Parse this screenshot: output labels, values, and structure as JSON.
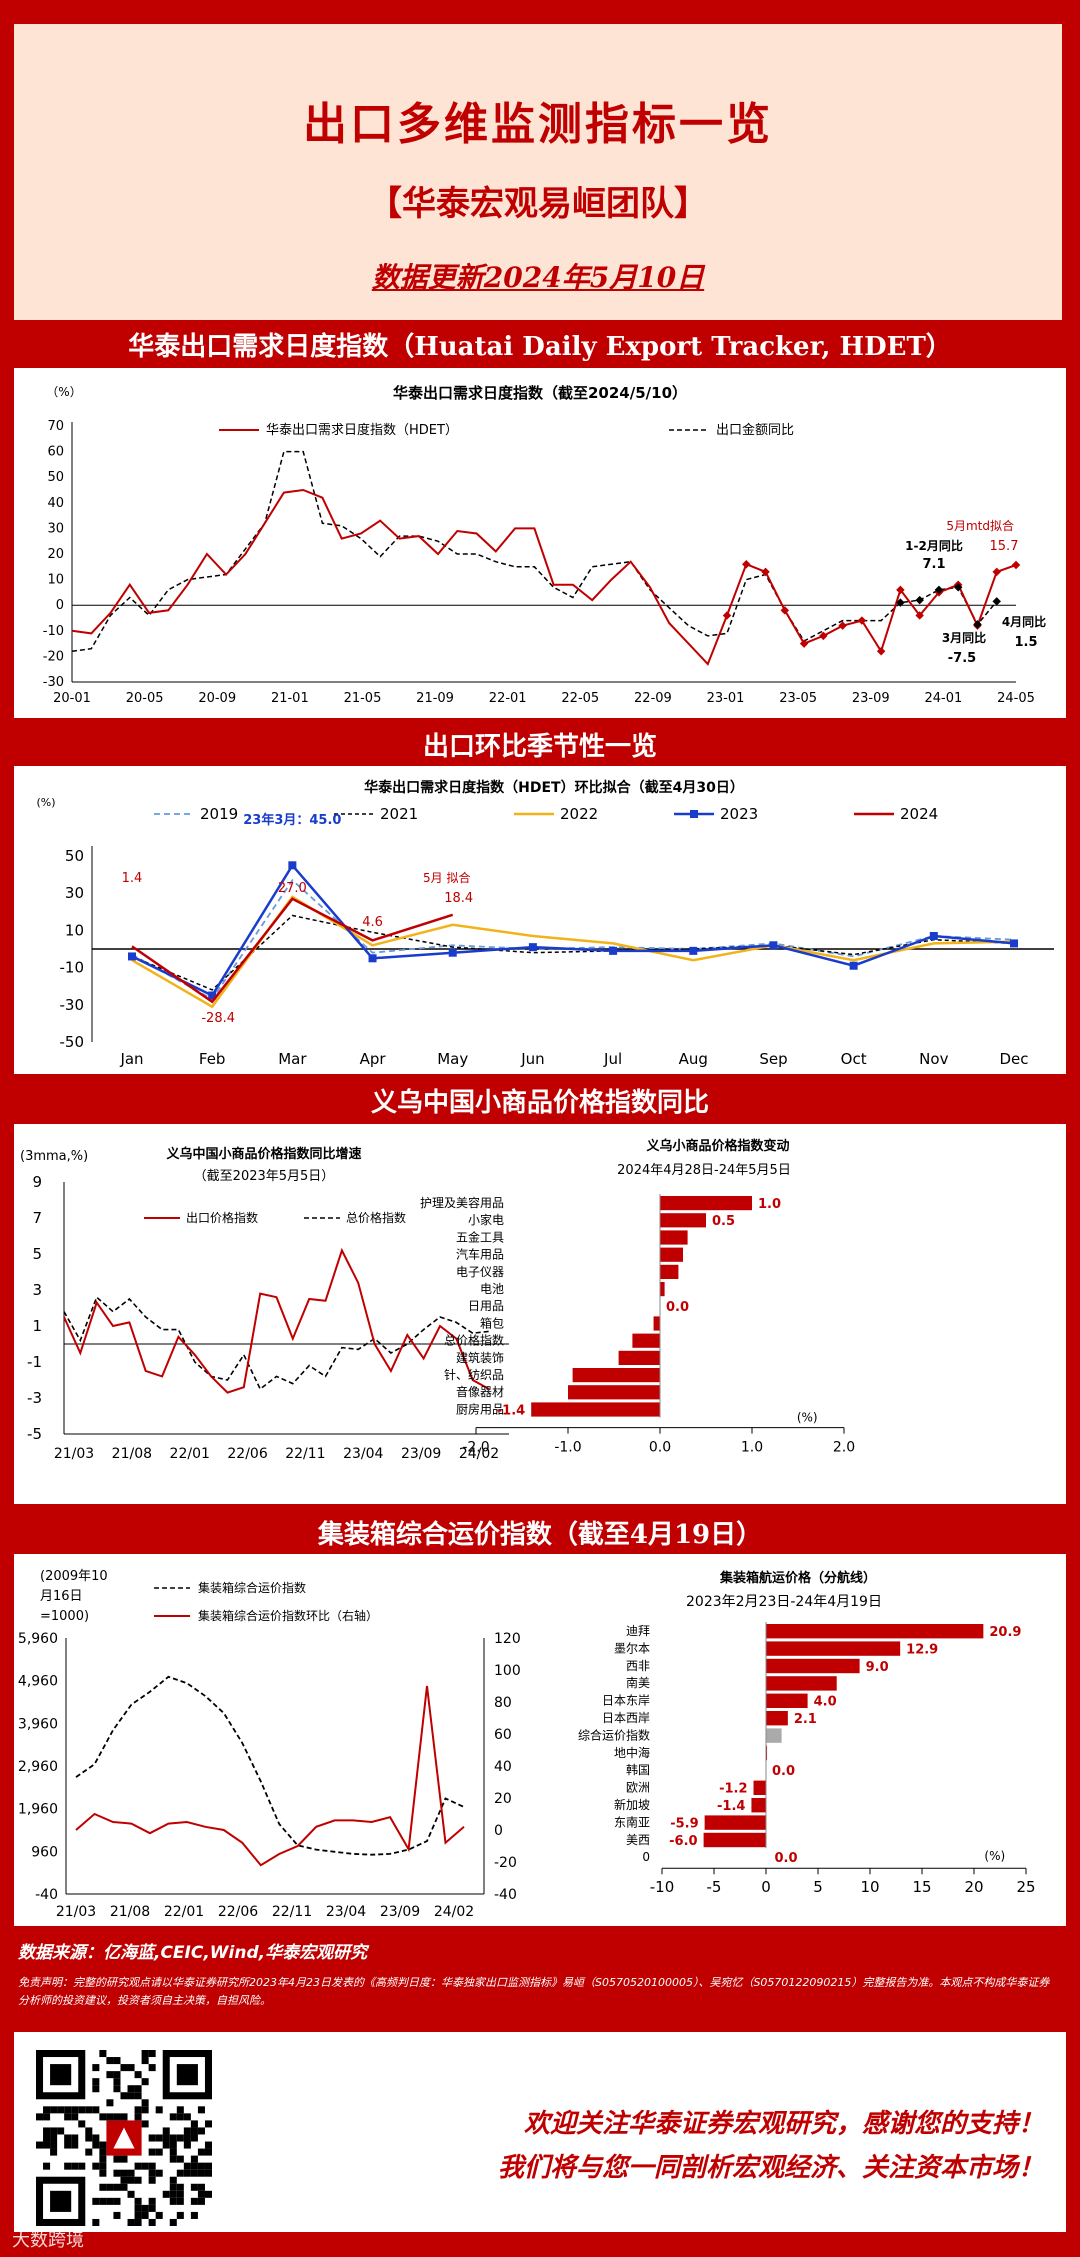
{
  "header": {
    "title": "出口多维监测指标一览",
    "team": "【华泰宏观易峘团队】",
    "update": "数据更新2024年5月10日"
  },
  "sections": {
    "hdet": "华泰出口需求日度指数（Huatai Daily Export Tracker, HDET）",
    "season": "出口环比季节性一览",
    "yiwu": "义乌中国小商品价格指数同比",
    "container": "集装箱综合运价指数（截至4月19日）"
  },
  "chart1": {
    "title": "华泰出口需求日度指数（截至2024/5/10）",
    "unit": "（%）",
    "legend": [
      "华泰出口需求日度指数（HDET）",
      "出口金额同比"
    ],
    "yticks": [
      "70",
      "60",
      "50",
      "40",
      "30",
      "20",
      "10",
      "0",
      "-10",
      "-20",
      "-30"
    ],
    "xticks": [
      "20-01",
      "20-05",
      "20-09",
      "21-01",
      "21-05",
      "21-09",
      "22-01",
      "22-05",
      "22-09",
      "23-01",
      "23-05",
      "23-09",
      "24-01",
      "24-05"
    ],
    "ann": {
      "may_label": "5月mtd拟合",
      "may_value": "15.7",
      "janfeb_label": "1-2月同比",
      "janfeb_value": "7.1",
      "mar_label": "3月同比",
      "mar_value": "-7.5",
      "apr_label": "4月同比",
      "apr_value": "1.5"
    }
  },
  "chart2": {
    "title": "华泰出口需求日度指数（HDET）环比拟合（截至4月30日）",
    "unit": "(%)",
    "legend": [
      "2019",
      "2021",
      "2022",
      "2023",
      "2024"
    ],
    "yticks": [
      "50",
      "30",
      "10",
      "-10",
      "-30",
      "-50"
    ],
    "xticks": [
      "Jan",
      "Feb",
      "Mar",
      "Apr",
      "May",
      "Jun",
      "Jul",
      "Aug",
      "Sep",
      "Oct",
      "Nov",
      "Dec"
    ],
    "ann": {
      "mar23": "23年3月：45.0",
      "jan": "1.4",
      "feb": "-28.4",
      "mar": "27.0",
      "apr": "4.6",
      "may_label": "5月 拟合",
      "may_value": "18.4"
    }
  },
  "chart3": {
    "unit": "(3mma,%)",
    "title": "义乌中国小商品价格指数同比增速",
    "subtitle": "（截至2023年5月5日）",
    "legend": [
      "出口价格指数",
      "总价格指数"
    ],
    "yticks": [
      "9",
      "7",
      "5",
      "3",
      "1",
      "-1",
      "-3",
      "-5"
    ],
    "xticks": [
      "21/03",
      "21/08",
      "22/01",
      "22/06",
      "22/11",
      "23/04",
      "23/09",
      "24/02"
    ]
  },
  "chart4": {
    "title": "义乌小商品价格指数变动",
    "subtitle": "2024年4月28日-24年5月5日",
    "unit": "(%)",
    "xticks": [
      "-2.0",
      "-1.0",
      "0.0",
      "1.0",
      "2.0"
    ],
    "categories": [
      "护理及美容用品",
      "小家电",
      "五金工具",
      "汽车用品",
      "电子仪器",
      "电池",
      "日用品",
      "箱包",
      "总价格指数",
      "建筑装饰",
      "针、纺织品",
      "音像器材",
      "厨房用品"
    ],
    "labels": [
      "1.0",
      "0.5",
      "",
      "",
      "",
      "",
      "0.0",
      "",
      "",
      "",
      "",
      "",
      "-1.4"
    ]
  },
  "chart5": {
    "unit_lines": [
      "(2009年10",
      "月16日",
      "=1000)"
    ],
    "legend": [
      "集装箱综合运价指数",
      "集装箱综合运价指数环比（右轴）"
    ],
    "yticks_left": [
      "5,960",
      "4,960",
      "3,960",
      "2,960",
      "1,960",
      "960",
      "-40"
    ],
    "yticks_right": [
      "120",
      "100",
      "80",
      "60",
      "40",
      "20",
      "0",
      "-20",
      "-40"
    ],
    "xticks": [
      "21/03",
      "21/08",
      "22/01",
      "22/06",
      "22/11",
      "23/04",
      "23/09",
      "24/02"
    ]
  },
  "chart6": {
    "title": "集装箱航运价格（分航线）",
    "subtitle": "2023年2月23日-24年4月19日",
    "unit": "(%)",
    "xticks": [
      "-10",
      "-5",
      "0",
      "5",
      "10",
      "15",
      "20",
      "25"
    ],
    "categories": [
      "迪拜",
      "墨尔本",
      "西非",
      "南美",
      "日本东岸",
      "日本西岸",
      "综合运价指数",
      "地中海",
      "韩国",
      "欧洲",
      "新加坡",
      "东南亚",
      "美西"
    ],
    "labels": [
      "20.9",
      "12.9",
      "9.0",
      "",
      "4.0",
      "2.1",
      "",
      "",
      "0.0",
      "-1.2",
      "-1.4",
      "-5.9",
      "-6.0"
    ],
    "bottom_label": "0.0",
    "extra_tick": "0"
  },
  "source": "数据来源：亿海蓝,CEIC,Wind,华泰宏观研究",
  "disclaimer": "免责声明：完整的研究观点请以华泰证券研究所2023年4月23日发表的《高频判日度：华泰独家出口监测指标》易峘（S0570520100005）、吴宛忆（S0570122090215）完整报告为准。本观点不构成华泰证券分析师的投资建议，投资者须自主决策，自担风险。",
  "footer": {
    "line1": "欢迎关注华泰证券宏观研究，感谢您的支持！",
    "line2": "我们将与您一同剖析宏观经济、关注资本市场！"
  },
  "watermark": "大数跨境",
  "colors": {
    "red": "#c00000",
    "bar": "#c00000",
    "grey": "#aaaaaa"
  },
  "chart_data": [
    {
      "type": "line",
      "title": "华泰出口需求日度指数（截至2024/5/10）",
      "ylim": [
        -30,
        70
      ],
      "series": [
        {
          "name": "华泰出口需求日度指数（HDET）",
          "values": [
            -10,
            -11,
            -3,
            8,
            -3,
            -2,
            8,
            20,
            12,
            20,
            32,
            44,
            45,
            42,
            26,
            28,
            33,
            26,
            27,
            20,
            29,
            28,
            21,
            30,
            30,
            8,
            8,
            2,
            10,
            17,
            7,
            -7,
            -15,
            -23,
            -4,
            16,
            13,
            -2,
            -15,
            -12,
            -8,
            -6,
            -18,
            6,
            -4,
            5,
            8,
            -8,
            13,
            15.7
          ]
        },
        {
          "name": "出口金额同比",
          "values": [
            -18,
            -17,
            -4,
            3,
            -4,
            6,
            10,
            11,
            12,
            22,
            32,
            60,
            60,
            32,
            31,
            26,
            19,
            27,
            27,
            25,
            20,
            20,
            17,
            15,
            15,
            7,
            3,
            15,
            16,
            17,
            6,
            -1,
            -8,
            -12,
            -11,
            10,
            12,
            -2,
            -14,
            -10,
            -6,
            -6,
            -6,
            1,
            2,
            6,
            7,
            -7.5,
            1.5,
            null
          ]
        }
      ]
    },
    {
      "type": "line",
      "title": "华泰出口需求日度指数（HDET）环比拟合（截至4月30日）",
      "categories": [
        "Jan",
        "Feb",
        "Mar",
        "Apr",
        "May",
        "Jun",
        "Jul",
        "Aug",
        "Sep",
        "Oct",
        "Nov",
        "Dec"
      ],
      "ylim": [
        -50,
        50
      ],
      "series": [
        {
          "name": "2019",
          "values": [
            -3,
            -27,
            37,
            -2,
            2,
            0,
            1,
            0,
            3,
            -4,
            7,
            5
          ]
        },
        {
          "name": "2021",
          "values": [
            -4,
            -22,
            18,
            9,
            1,
            -2,
            -1,
            0,
            2,
            -3,
            5,
            3
          ]
        },
        {
          "name": "2022",
          "values": [
            -6,
            -31,
            28,
            2,
            13,
            7,
            3,
            -6,
            2,
            -6,
            3,
            4
          ]
        },
        {
          "name": "2023",
          "values": [
            -4,
            -25,
            45,
            -5,
            -2,
            1,
            -1,
            -1,
            2,
            -9,
            7,
            3
          ]
        },
        {
          "name": "2024",
          "values": [
            1.4,
            -28.4,
            27.0,
            4.6,
            18.4,
            null,
            null,
            null,
            null,
            null,
            null,
            null
          ]
        }
      ]
    },
    {
      "type": "line",
      "title": "义乌中国小商品价格指数同比增速",
      "ylim": [
        -5,
        9
      ],
      "series": [
        {
          "name": "出口价格指数",
          "values": [
            1.5,
            -0.5,
            2.3,
            1.0,
            1.2,
            -1.5,
            -1.8,
            0.4,
            -0.6,
            -1.8,
            -2.7,
            -2.4,
            2.8,
            2.6,
            0.3,
            2.5,
            2.4,
            5.2,
            3.4,
            0.0,
            -1.5,
            0.5,
            -0.8,
            1.0,
            0.3,
            -2.0,
            -2.5
          ]
        },
        {
          "name": "总价格指数",
          "values": [
            1.8,
            0.2,
            2.6,
            1.8,
            2.5,
            1.5,
            0.8,
            0.8,
            -1.0,
            -1.8,
            -2.0,
            -0.6,
            -2.5,
            -1.8,
            -2.2,
            -1.2,
            -1.8,
            -0.2,
            -0.3,
            0.3,
            -0.5,
            0.0,
            0.8,
            1.5,
            1.2,
            0.6,
            0.7
          ]
        }
      ]
    },
    {
      "type": "bar",
      "title": "义乌小商品价格指数变动",
      "categories": [
        "护理及美容用品",
        "小家电",
        "五金工具",
        "汽车用品",
        "电子仪器",
        "电池",
        "日用品",
        "箱包",
        "总价格指数",
        "建筑装饰",
        "针、纺织品",
        "音像器材",
        "厨房用品"
      ],
      "values": [
        1.0,
        0.5,
        0.3,
        0.25,
        0.2,
        0.05,
        0.0,
        -0.07,
        -0.3,
        -0.45,
        -0.95,
        -1.0,
        -1.4
      ],
      "xlim": [
        -2,
        2
      ]
    },
    {
      "type": "line",
      "title": "集装箱综合运价指数",
      "series": [
        {
          "name": "集装箱综合运价指数",
          "axis": "left",
          "values": [
            2700,
            3000,
            3800,
            4400,
            4700,
            5050,
            4900,
            4600,
            4200,
            3500,
            2600,
            1600,
            1100,
            1000,
            950,
            900,
            880,
            900,
            1000,
            1200,
            2200,
            2000
          ]
        },
        {
          "name": "集装箱综合运价指数环比（右轴）",
          "axis": "right",
          "values": [
            0,
            10,
            5,
            4,
            -2,
            4,
            5,
            2,
            0,
            -8,
            -22,
            -15,
            -10,
            2,
            6,
            6,
            5,
            8,
            -12,
            90,
            -8,
            2
          ]
        }
      ]
    },
    {
      "type": "bar",
      "title": "集装箱航运价格（分航线）",
      "categories": [
        "迪拜",
        "墨尔本",
        "西非",
        "南美",
        "日本东岸",
        "日本西岸",
        "综合运价指数",
        "地中海",
        "韩国",
        "欧洲",
        "新加坡",
        "东南亚",
        "美西"
      ],
      "values": [
        20.9,
        12.9,
        9.0,
        6.8,
        4.0,
        2.1,
        1.5,
        0.1,
        0.0,
        -1.2,
        -1.4,
        -5.9,
        -6.0
      ],
      "xlim": [
        -10,
        25
      ]
    }
  ]
}
